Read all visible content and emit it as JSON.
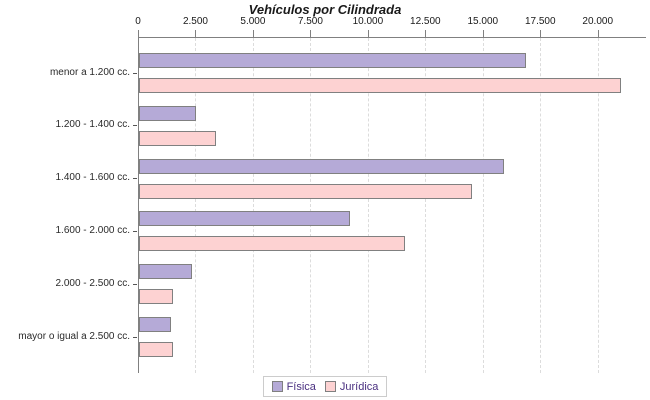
{
  "title": "Vehículos por Cilindrada",
  "colors": {
    "fisica_fill": "#b5aad7",
    "juridica_fill": "#fdd2d2",
    "bar_border": "#808080",
    "axis": "#808080",
    "gridline": "#dcdcdc",
    "legend_text": "#4a3080",
    "legend_border": "#cccccc",
    "title_text": "#1a1a1a"
  },
  "legend": {
    "items": [
      {
        "label": "Física"
      },
      {
        "label": "Jurídica"
      }
    ]
  },
  "chart_data": {
    "type": "bar",
    "orientation": "horizontal",
    "title": "Vehículos por Cilindrada",
    "categories": [
      "menor a 1.200 cc.",
      "1.200 - 1.400 cc.",
      "1.400 - 1.600 cc.",
      "1.600 - 2.000 cc.",
      "2.000 - 2.500 cc.",
      "mayor o igual a 2.500 cc."
    ],
    "series": [
      {
        "name": "Física",
        "color": "#b5aad7",
        "values": [
          16750,
          2400,
          15800,
          9100,
          2200,
          1300
        ]
      },
      {
        "name": "Jurídica",
        "color": "#fdd2d2",
        "values": [
          20900,
          3250,
          14400,
          11500,
          1400,
          1400
        ]
      }
    ],
    "x_ticks": [
      0,
      2500,
      5000,
      7500,
      10000,
      12500,
      15000,
      17500,
      20000
    ],
    "x_tick_labels": [
      "0",
      "2.500",
      "5.000",
      "7.500",
      "10.000",
      "12.500",
      "15.000",
      "17.500",
      "20.000"
    ],
    "xlim": [
      0,
      22100
    ],
    "xlabel": "",
    "ylabel": "",
    "grid": "vertical-dashed",
    "axis_position": "top",
    "legend_position": "bottom"
  }
}
